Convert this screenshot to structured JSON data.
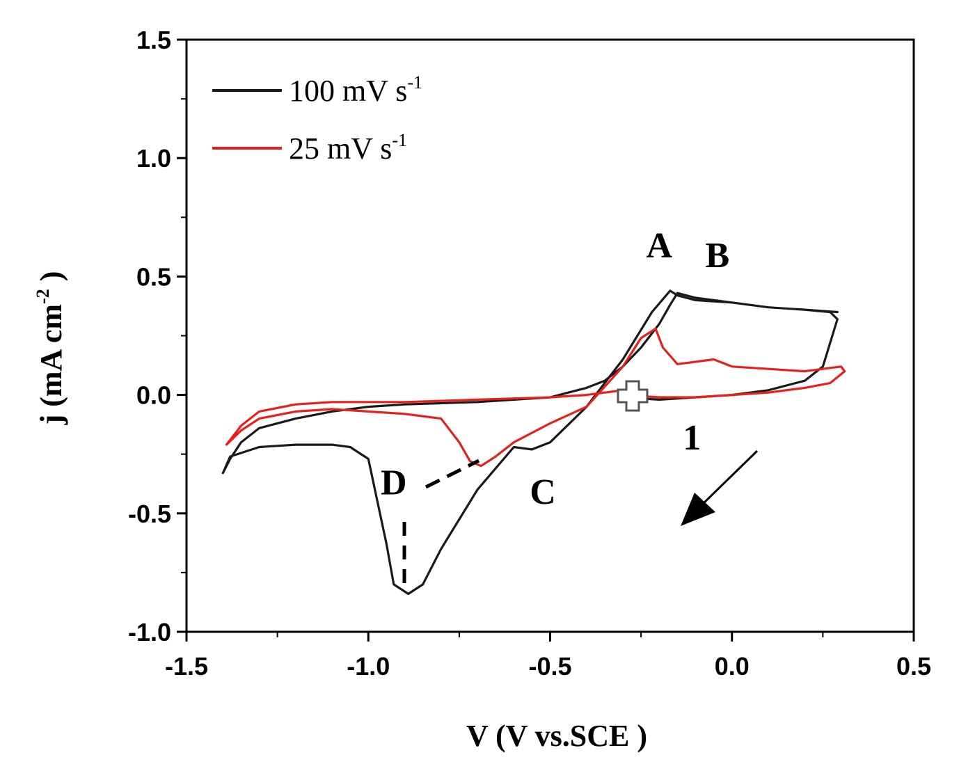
{
  "chart_data": {
    "type": "line",
    "title": "",
    "xlabel": "V (V vs.SCE )",
    "ylabel": "j (mA cm-2 )",
    "ylabel_parts": {
      "main": "j (mA cm",
      "sup": "-2",
      "end": " )"
    },
    "xlim": [
      -1.5,
      0.5
    ],
    "ylim": [
      -1.0,
      1.5
    ],
    "xticks": [
      -1.5,
      -1.0,
      -0.5,
      0.0,
      0.5
    ],
    "xtick_labels": [
      "-1.5",
      "-1.0",
      "-0.5",
      "0.0",
      "0.5"
    ],
    "yticks": [
      -1.0,
      -0.5,
      0.0,
      0.5,
      1.0,
      1.5
    ],
    "ytick_labels": [
      "-1.0",
      "-0.5",
      "0.0",
      "0.5",
      "1.0",
      "1.5"
    ],
    "grid": false,
    "legend_position": "top-left",
    "series": [
      {
        "name": "100 mV s-1",
        "label_main": "100 mV s",
        "label_sup": "-1",
        "color": "#1a1a1a",
        "x": [
          -0.3,
          -0.2,
          -0.1,
          0.0,
          0.1,
          0.2,
          0.25,
          0.29,
          0.27,
          0.2,
          0.1,
          0.0,
          -0.1,
          -0.15,
          -0.17,
          -0.22,
          -0.3,
          -0.4,
          -0.5,
          -0.55,
          -0.6,
          -0.7,
          -0.8,
          -0.85,
          -0.89,
          -0.93,
          -0.95,
          -1.0,
          -1.05,
          -1.1,
          -1.2,
          -1.3,
          -1.38,
          -1.4,
          -1.38,
          -1.35,
          -1.3,
          -1.2,
          -1.1,
          -1.0,
          -0.9,
          -0.8,
          -0.7,
          -0.6,
          -0.5,
          -0.45,
          -0.4,
          -0.35,
          -0.3,
          -0.25,
          -0.2,
          -0.17,
          -0.15,
          -0.1,
          0.0,
          0.1,
          0.2,
          0.29
        ],
        "y": [
          -0.01,
          -0.02,
          -0.01,
          0.0,
          0.02,
          0.06,
          0.12,
          0.32,
          0.35,
          0.36,
          0.37,
          0.39,
          0.4,
          0.42,
          0.44,
          0.35,
          0.15,
          -0.05,
          -0.2,
          -0.23,
          -0.22,
          -0.4,
          -0.65,
          -0.8,
          -0.84,
          -0.8,
          -0.63,
          -0.27,
          -0.22,
          -0.21,
          -0.21,
          -0.22,
          -0.26,
          -0.33,
          -0.27,
          -0.2,
          -0.14,
          -0.1,
          -0.07,
          -0.05,
          -0.04,
          -0.035,
          -0.03,
          -0.02,
          -0.01,
          0.01,
          0.03,
          0.06,
          0.12,
          0.2,
          0.3,
          0.38,
          0.43,
          0.41,
          0.39,
          0.37,
          0.36,
          0.35
        ]
      },
      {
        "name": "25 mV s-1",
        "label_main": "25 mV s",
        "label_sup": "-1",
        "color": "#e8201a",
        "x": [
          -0.3,
          -0.2,
          -0.1,
          0.0,
          0.1,
          0.2,
          0.27,
          0.31,
          0.3,
          0.25,
          0.2,
          0.1,
          0.0,
          -0.05,
          -0.1,
          -0.15,
          -0.19,
          -0.21,
          -0.25,
          -0.3,
          -0.4,
          -0.5,
          -0.6,
          -0.65,
          -0.69,
          -0.72,
          -0.75,
          -0.8,
          -0.9,
          -1.0,
          -1.1,
          -1.2,
          -1.3,
          -1.35,
          -1.39,
          -1.35,
          -1.3,
          -1.2,
          -1.1,
          -1.0,
          -0.9,
          -0.8,
          -0.7,
          -0.6,
          -0.5,
          -0.4,
          -0.35,
          -0.3
        ],
        "y": [
          0.0,
          -0.01,
          -0.01,
          0.0,
          0.01,
          0.03,
          0.05,
          0.1,
          0.12,
          0.11,
          0.1,
          0.11,
          0.12,
          0.15,
          0.14,
          0.13,
          0.2,
          0.28,
          0.24,
          0.12,
          -0.05,
          -0.12,
          -0.2,
          -0.26,
          -0.3,
          -0.28,
          -0.2,
          -0.1,
          -0.08,
          -0.07,
          -0.06,
          -0.07,
          -0.1,
          -0.15,
          -0.21,
          -0.13,
          -0.07,
          -0.04,
          -0.03,
          -0.03,
          -0.03,
          -0.025,
          -0.02,
          -0.015,
          -0.01,
          0.0,
          0.01,
          0.02
        ]
      }
    ],
    "annotations": [
      {
        "text": "A",
        "x": -0.2,
        "y": 0.58
      },
      {
        "text": "B",
        "x": -0.04,
        "y": 0.54
      },
      {
        "text": "C",
        "x": -0.52,
        "y": -0.46
      },
      {
        "text": "D",
        "x": -0.93,
        "y": -0.42
      },
      {
        "text": "1",
        "x": -0.11,
        "y": -0.23
      }
    ]
  }
}
